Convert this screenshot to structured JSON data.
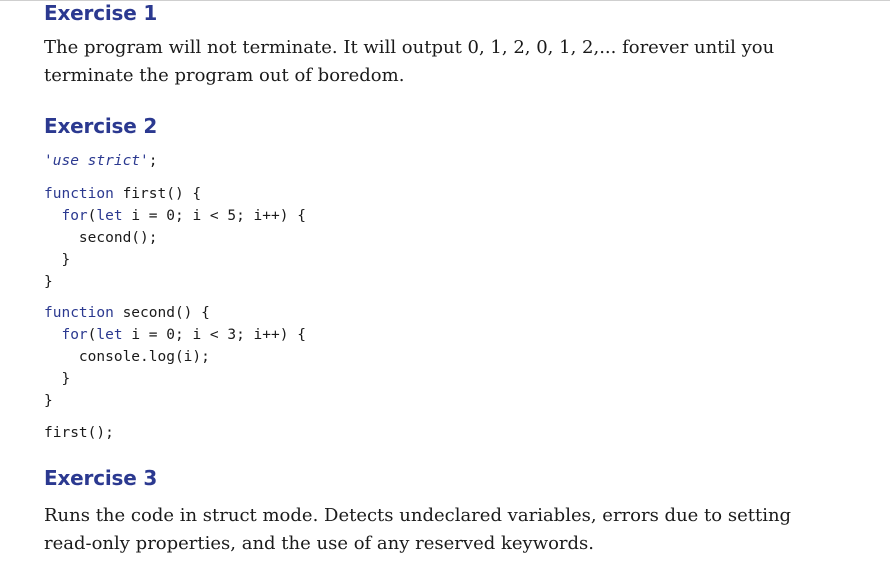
{
  "exercises": [
    {
      "title": "Exercise 1",
      "text": "The program will not terminate. It will output 0, 1, 2, 0, 1, 2,... forever until you terminate the program out of boredom."
    },
    {
      "title": "Exercise 2",
      "code": {
        "strict": "'use strict'",
        "strict_end": ";",
        "kw_function": "function",
        "kw_for": "for",
        "kw_let": "let",
        "f1_sig": " first() {",
        "f1_loop": "(  i = 0; i < 5; i++) {",
        "f1_loop_head": "(",
        "f1_loop_tail": " i = 0; i < 5; i++) {",
        "f1_body": "second();",
        "close_inner": "}",
        "close_outer": "}",
        "f2_sig": " second() {",
        "f2_loop_tail": " i = 0; i < 3; i++) {",
        "f2_body": "console.log(i);",
        "call": "first();"
      }
    },
    {
      "title": "Exercise 3",
      "text": "Runs the code in struct mode. Detects undeclared variables, errors due to setting read-only properties, and the use of any reserved keywords."
    }
  ]
}
